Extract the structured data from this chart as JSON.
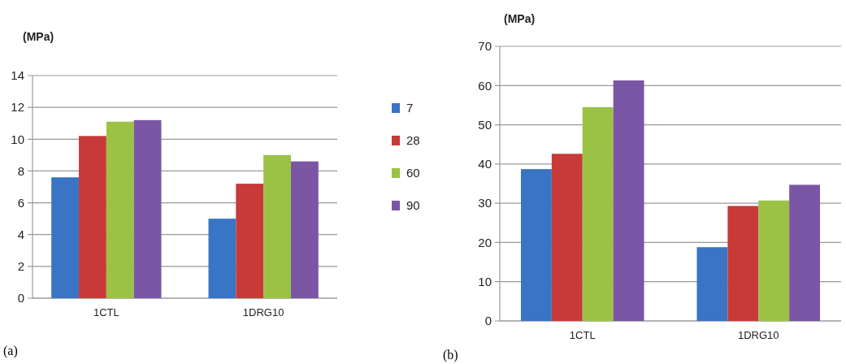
{
  "chart_data": [
    {
      "type": "bar",
      "ylabel": "(MPa)",
      "categories": [
        "1CTL",
        "1DRG10"
      ],
      "series": [
        {
          "name": "7",
          "color": "#3a74c4",
          "values": [
            7.6,
            5.0
          ]
        },
        {
          "name": "28",
          "color": "#c73a38",
          "values": [
            10.2,
            7.2
          ]
        },
        {
          "name": "60",
          "color": "#9bc245",
          "values": [
            11.1,
            9.0
          ]
        },
        {
          "name": "90",
          "color": "#7a56a4",
          "values": [
            11.2,
            8.6
          ]
        }
      ],
      "ylim": [
        0,
        14
      ],
      "yticks": [
        0,
        2,
        4,
        6,
        8,
        10,
        12,
        14
      ],
      "grid": "y",
      "legend": "right",
      "annotations": [
        "(a)"
      ]
    },
    {
      "type": "bar",
      "ylabel": "(MPa)",
      "categories": [
        "1CTL",
        "1DRG10"
      ],
      "series": [
        {
          "color": "#3a74c4",
          "values": [
            38.7,
            18.8
          ]
        },
        {
          "color": "#c73a38",
          "values": [
            42.6,
            29.3
          ]
        },
        {
          "color": "#9bc245",
          "values": [
            54.5,
            30.7
          ]
        },
        {
          "color": "#7a56a4",
          "values": [
            61.3,
            34.7
          ]
        }
      ],
      "ylim": [
        0,
        70
      ],
      "yticks": [
        0,
        10,
        20,
        30,
        40,
        50,
        60,
        70
      ],
      "grid": "y",
      "annotations": [
        "(b)"
      ]
    }
  ]
}
